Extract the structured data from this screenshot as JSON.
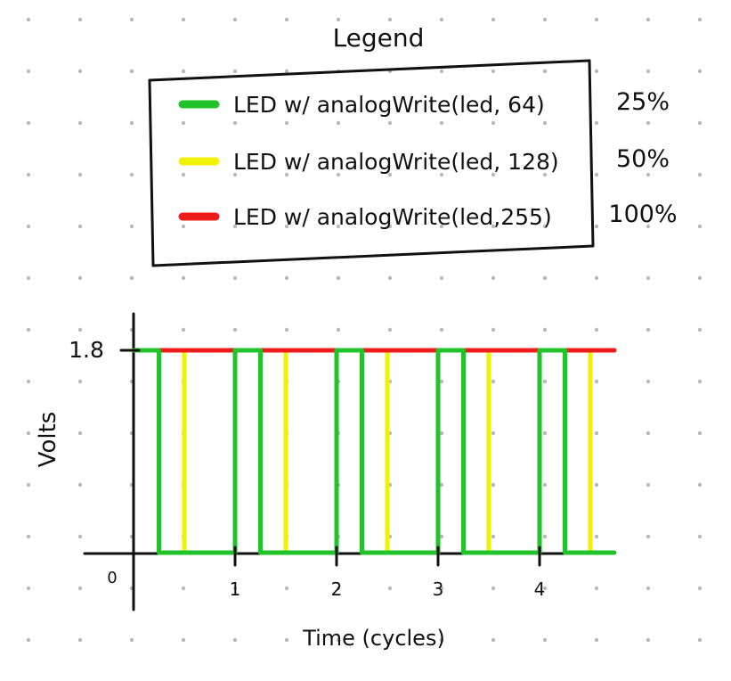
{
  "legend": {
    "title": "Legend",
    "colors": {
      "green": "#22c22a",
      "yellow": "#f2f200",
      "red": "#ee1b1b",
      "ink": "#111111",
      "dot": "#b9b9b9"
    },
    "entries": [
      {
        "label": "LED w/ analogWrite(led, 64)",
        "percent": "25%",
        "color": "#22c22a"
      },
      {
        "label": "LED w/ analogWrite(led, 128)",
        "percent": "50%",
        "color": "#f2f200"
      },
      {
        "label": "LED w/ analogWrite(led,255)",
        "percent": "100%",
        "color": "#ee1b1b"
      }
    ]
  },
  "chart_data": {
    "type": "line",
    "title": "",
    "xlabel": "Time (cycles)",
    "ylabel": "Volts",
    "xlim": [
      0,
      5
    ],
    "ylim": [
      0,
      1.8
    ],
    "xticks": [
      "1",
      "2",
      "3",
      "4"
    ],
    "ytick_label": "1.8",
    "origin_label": "0",
    "grid": false,
    "legend_position": "top",
    "series": [
      {
        "label": "LED w/ analogWrite(led, 64)",
        "color": "#22c22a",
        "duty": 0.25,
        "high": 1.8,
        "low": 0,
        "period": 1,
        "start": 0,
        "end": 5
      },
      {
        "label": "LED w/ analogWrite(led, 128)",
        "color": "#f2f200",
        "duty": 0.5,
        "high": 1.8,
        "low": 0,
        "period": 1,
        "start": 0,
        "end": 4.6
      },
      {
        "label": "LED w/ analogWrite(led,255)",
        "color": "#ee1b1b",
        "duty": 1.0,
        "high": 1.8,
        "low": 0,
        "period": 1,
        "start": 0,
        "end": 5
      }
    ]
  }
}
